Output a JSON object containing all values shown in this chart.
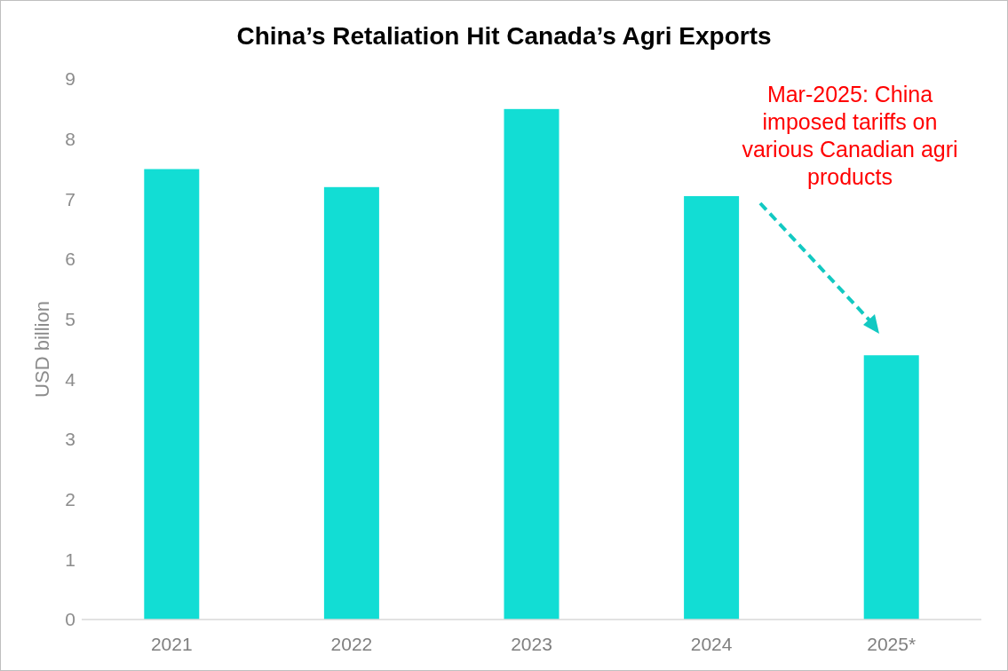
{
  "chart_data": {
    "type": "bar",
    "title": "China’s Retaliation Hit Canada’s Agri Exports",
    "ylabel": "USD billion",
    "categories": [
      "2021",
      "2022",
      "2023",
      "2024",
      "2025*"
    ],
    "values": [
      7.5,
      7.2,
      8.5,
      7.05,
      4.4
    ],
    "color": "#12ddd4",
    "ylim": [
      0,
      9
    ],
    "yticks": [
      0,
      1,
      2,
      3,
      4,
      5,
      6,
      7,
      8,
      9
    ],
    "annotations": [
      "Mar-2025: China\nimposed tariffs on\nvarious Canadian agri\nproducts"
    ]
  }
}
